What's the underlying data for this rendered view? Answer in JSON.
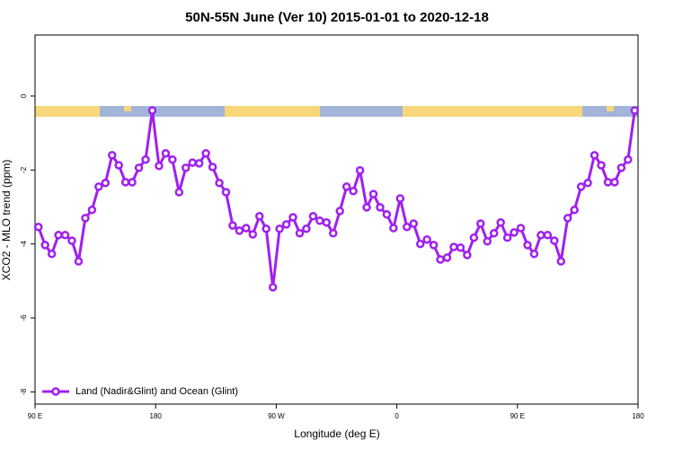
{
  "chart_data": {
    "type": "line",
    "title": "50N-55N June (Ver 10)   2015-01-01 to 2020-12-18",
    "x_label": "Longitude (deg E)",
    "y_label": "XCO2 - MLO trend (ppm)",
    "x": [
      92.5,
      97.5,
      102.5,
      107.5,
      112.5,
      117.5,
      122.5,
      127.5,
      132.5,
      137.5,
      142.5,
      147.5,
      152.5,
      157.5,
      162.5,
      167.5,
      172.5,
      177.5,
      182.5,
      187.5,
      192.5,
      197.5,
      202.5,
      207.5,
      212.5,
      217.5,
      222.5,
      227.5,
      232.5,
      237.5,
      242.5,
      247.5,
      252.5,
      257.5,
      262.5,
      267.5,
      272.5,
      277.5,
      282.5,
      287.5,
      292.5,
      297.5,
      302.5,
      307.5,
      312.5,
      317.5,
      322.5,
      327.5,
      332.5,
      337.5,
      342.5,
      347.5,
      352.5,
      357.5,
      362.5,
      367.5,
      372.5,
      377.5,
      382.5,
      387.5,
      392.5,
      397.5,
      402.5,
      407.5,
      412.5,
      417.5,
      422.5,
      427.5,
      432.5,
      437.5,
      442.5,
      447.5,
      452.5,
      457.5,
      462.5,
      467.5,
      472.5,
      477.5,
      482.5,
      487.5,
      492.5,
      497.5,
      502.5,
      507.5,
      512.5,
      517.5,
      522.5,
      527.5,
      532.5,
      537.5
    ],
    "series": [
      {
        "name": "Land (Nadir&Glint) and Ocean (Glint)",
        "color": "#a020f0",
        "values": [
          -3.54,
          -4.03,
          -4.27,
          -3.76,
          -3.76,
          -3.91,
          -4.47,
          -3.3,
          -3.08,
          -2.45,
          -2.35,
          -1.6,
          -1.87,
          -2.33,
          -2.33,
          -1.94,
          -1.72,
          -0.39,
          -1.89,
          -1.55,
          -1.72,
          -2.6,
          -1.94,
          -1.8,
          -1.82,
          -1.55,
          -1.92,
          -2.35,
          -2.6,
          -3.5,
          -3.64,
          -3.57,
          -3.74,
          -3.25,
          -3.59,
          -5.17,
          -3.59,
          -3.47,
          -3.28,
          -3.71,
          -3.59,
          -3.25,
          -3.37,
          -3.42,
          -3.71,
          -3.11,
          -2.45,
          -2.57,
          -2.01,
          -3.01,
          -2.65,
          -3.01,
          -3.2,
          -3.57,
          -2.77,
          -3.54,
          -3.45,
          -4.0,
          -3.88,
          -4.03,
          -4.42,
          -4.37,
          -4.08,
          -4.1,
          -4.3,
          -3.83,
          -3.45,
          -3.93,
          -3.71,
          -3.42,
          -3.83,
          -3.69,
          -3.57,
          -4.03,
          -4.27,
          -3.76,
          -3.76,
          -3.91,
          -4.47,
          -3.3,
          -3.08,
          -2.45,
          -2.35,
          -1.6,
          -1.87,
          -2.33,
          -2.33,
          -1.94,
          -1.72,
          -0.39
        ]
      }
    ],
    "xlim": [
      90,
      540
    ],
    "xticks": [
      {
        "value": 90,
        "label": "90 E"
      },
      180,
      {
        "value": 270,
        "label": "90 W"
      },
      {
        "value": 360,
        "label": "0"
      },
      {
        "value": 450,
        "label": "90 E"
      },
      {
        "value": 540,
        "label": "180"
      }
    ],
    "ylim": [
      -8.33,
      1.65
    ],
    "yticks": [
      0,
      -2,
      -4,
      -6,
      -8
    ],
    "legend": "bottom-left"
  }
}
